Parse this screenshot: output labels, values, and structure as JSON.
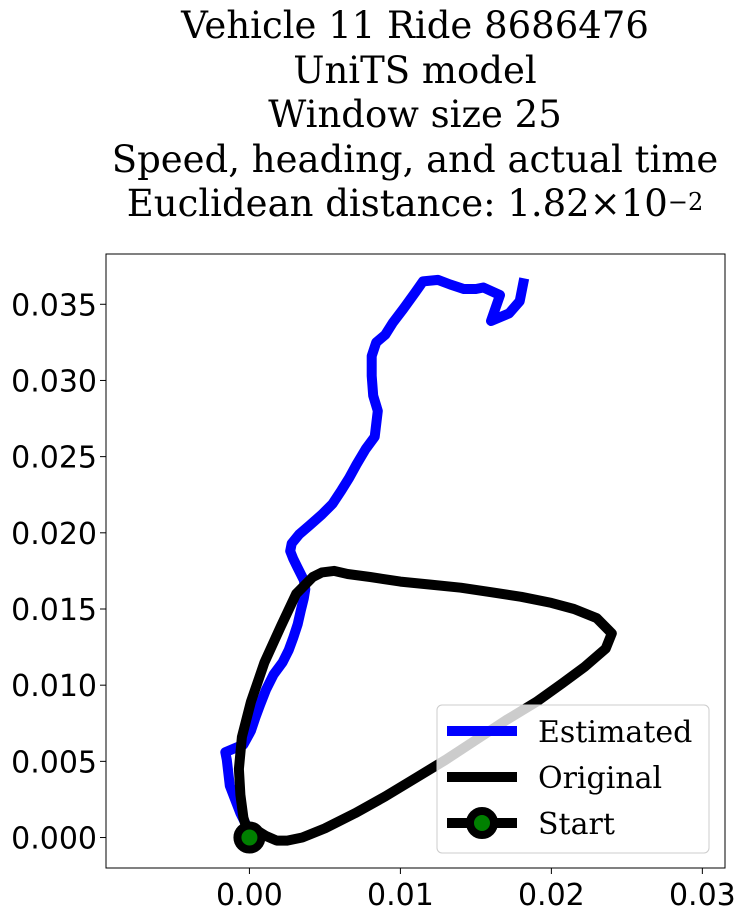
{
  "chart_data": {
    "type": "line",
    "title_lines": [
      "Vehicle 11 Ride 8686476",
      "UniTS model",
      "Window size 25",
      "Speed, heading, and actual time"
    ],
    "title_metric": {
      "prefix": "Euclidean distance: ",
      "mantissa": "1.82",
      "times": "×",
      "base": "10",
      "exponent": "−2"
    },
    "xlabel": "",
    "ylabel": "",
    "xlim": [
      -0.0095,
      0.0315
    ],
    "ylim": [
      -0.002,
      0.0383
    ],
    "xticks": [
      0.0,
      0.01,
      0.02,
      0.03
    ],
    "xtick_labels": [
      "0.00",
      "0.01",
      "0.02",
      "0.03"
    ],
    "yticks": [
      0.0,
      0.005,
      0.01,
      0.015,
      0.02,
      0.025,
      0.03,
      0.035
    ],
    "ytick_labels": [
      "0.000",
      "0.005",
      "0.010",
      "0.015",
      "0.020",
      "0.025",
      "0.030",
      "0.035"
    ],
    "grid": false,
    "legend_position": "lower-right",
    "series": [
      {
        "name": "Estimated",
        "color": "#0000ff",
        "x": [
          0.0,
          -0.0006,
          -0.0013,
          -0.0015,
          -0.0016,
          -0.0004,
          0.0001,
          0.0004,
          0.0007,
          0.0011,
          0.0016,
          0.0022,
          0.0026,
          0.0029,
          0.0032,
          0.0034,
          0.0036,
          0.0037,
          0.0036,
          0.0032,
          0.0029,
          0.0027,
          0.0028,
          0.0033,
          0.004,
          0.0048,
          0.0055,
          0.0061,
          0.0066,
          0.0071,
          0.0077,
          0.0083,
          0.0085,
          0.0082,
          0.0081,
          0.0081,
          0.0084,
          0.009,
          0.0095,
          0.0102,
          0.011,
          0.0115,
          0.0125,
          0.0133,
          0.0142,
          0.015,
          0.0155,
          0.0166,
          0.016,
          0.0172,
          0.0179,
          0.0182
        ],
        "y": [
          0.0004,
          0.0016,
          0.0034,
          0.0051,
          0.0056,
          0.0061,
          0.007,
          0.0079,
          0.0087,
          0.0097,
          0.0107,
          0.0115,
          0.0123,
          0.0131,
          0.014,
          0.0149,
          0.0157,
          0.0163,
          0.0169,
          0.0177,
          0.0183,
          0.0188,
          0.0193,
          0.0199,
          0.0205,
          0.0212,
          0.0219,
          0.0228,
          0.0236,
          0.0245,
          0.0255,
          0.0263,
          0.028,
          0.029,
          0.0303,
          0.0316,
          0.0325,
          0.033,
          0.0338,
          0.0347,
          0.0358,
          0.0365,
          0.0366,
          0.0363,
          0.036,
          0.036,
          0.0361,
          0.0356,
          0.0339,
          0.0344,
          0.0352,
          0.0367
        ]
      },
      {
        "name": "Original",
        "color": "#000000",
        "x": [
          0.0,
          -0.0004,
          -0.0006,
          -0.0007,
          -0.0005,
          0.0001,
          0.001,
          0.0021,
          0.0031,
          0.0042,
          0.0048,
          0.0056,
          0.0065,
          0.008,
          0.01,
          0.012,
          0.014,
          0.016,
          0.018,
          0.02,
          0.0215,
          0.023,
          0.024,
          0.0236,
          0.0222,
          0.0207,
          0.019,
          0.017,
          0.015,
          0.013,
          0.011,
          0.009,
          0.007,
          0.005,
          0.0035,
          0.0025,
          0.0018,
          0.0011,
          0.0006,
          0.0002,
          0.0
        ],
        "y": [
          0.0,
          0.0013,
          0.0028,
          0.0045,
          0.0066,
          0.0089,
          0.0115,
          0.0139,
          0.016,
          0.0171,
          0.0174,
          0.0175,
          0.0173,
          0.0171,
          0.0168,
          0.0166,
          0.0164,
          0.0161,
          0.0158,
          0.0154,
          0.015,
          0.0144,
          0.0134,
          0.0124,
          0.0112,
          0.0101,
          0.0089,
          0.0077,
          0.0064,
          0.0051,
          0.0039,
          0.0027,
          0.0016,
          0.0006,
          0.0,
          -0.0002,
          -0.0002,
          0.0001,
          0.0004,
          0.0003,
          0.0
        ]
      }
    ],
    "start": {
      "name": "Start",
      "x": 0.0,
      "y": 0.0,
      "edge_color": "#000000",
      "face_color": "#008000"
    },
    "legend_entries": [
      "Estimated",
      "Original",
      "Start"
    ]
  }
}
